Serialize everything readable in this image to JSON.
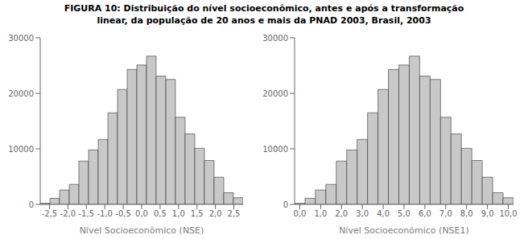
{
  "title": "FIGURA 10: Distribuição do nível socioeconômico, antes e após a transformação\nlinear, da população de 20 anos e mais da PNAD 2003, Brasil, 2003",
  "chart_data": [
    {
      "type": "histogram",
      "xlabel": "Nível Socioeconômico (NSE)",
      "bins": [
        -2.75,
        -2.488095238095238,
        -2.226190476190476,
        -1.964285714285714,
        -1.702380952380952,
        -1.44047619047619,
        -1.178571428571429,
        -0.916666666666667,
        -0.654761904761905,
        -0.392857142857143,
        -0.130952380952381,
        0.130952380952381,
        0.392857142857143,
        0.654761904761905,
        0.916666666666667,
        1.178571428571429,
        1.44047619047619,
        1.702380952380952,
        1.964285714285714,
        2.226190476190476,
        2.488095238095238,
        2.75
      ],
      "values": [
        200,
        1100,
        2600,
        3600,
        7800,
        9800,
        11700,
        16500,
        20700,
        24300,
        25100,
        26700,
        23100,
        22500,
        15700,
        12700,
        10100,
        7900,
        4900,
        2100,
        1200
      ],
      "color": "#c8c8c8",
      "xlim": [
        -2.75,
        2.75
      ],
      "xticks": [
        {
          "value": -2.5,
          "label": "-2,5"
        },
        {
          "value": -2.0,
          "label": "-2,0"
        },
        {
          "value": -1.5,
          "label": "-1,5"
        },
        {
          "value": -1.0,
          "label": "-1,0"
        },
        {
          "value": -0.5,
          "label": "-0,5"
        },
        {
          "value": 0.0,
          "label": "0,0"
        },
        {
          "value": 0.5,
          "label": "0,5"
        },
        {
          "value": 1.0,
          "label": "1,0"
        },
        {
          "value": 1.5,
          "label": "1,5"
        },
        {
          "value": 2.0,
          "label": "2,0"
        },
        {
          "value": 2.5,
          "label": "2,5"
        }
      ],
      "ylim": [
        0,
        30000
      ],
      "yticks": [
        0,
        10000,
        20000,
        30000
      ],
      "grid": false
    },
    {
      "type": "histogram",
      "xlabel": "Nível Socioeconômico (NSE1)",
      "bins": [
        -0.25,
        0.25,
        0.75,
        1.25,
        1.75,
        2.25,
        2.75,
        3.25,
        3.75,
        4.25,
        4.75,
        5.25,
        5.75,
        6.25,
        6.75,
        7.25,
        7.75,
        8.25,
        8.75,
        9.25,
        9.75,
        10.25
      ],
      "values": [
        200,
        1100,
        2600,
        3600,
        7800,
        9800,
        11700,
        16500,
        20700,
        24300,
        25100,
        26700,
        23100,
        22500,
        15700,
        12700,
        10100,
        7900,
        4900,
        2100,
        1200
      ],
      "color": "#c8c8c8",
      "xlim": [
        -0.25,
        10.25
      ],
      "xticks": [
        {
          "value": 0.0,
          "label": "0,0"
        },
        {
          "value": 1.0,
          "label": "1,0"
        },
        {
          "value": 2.0,
          "label": "2,0"
        },
        {
          "value": 3.0,
          "label": "3,0"
        },
        {
          "value": 4.0,
          "label": "4,0"
        },
        {
          "value": 5.0,
          "label": "5,0"
        },
        {
          "value": 6.0,
          "label": "6,0"
        },
        {
          "value": 7.0,
          "label": "7,0"
        },
        {
          "value": 8.0,
          "label": "8,0"
        },
        {
          "value": 9.0,
          "label": "9,0"
        },
        {
          "value": 10.0,
          "label": "10,0"
        }
      ],
      "ylim": [
        0,
        30000
      ],
      "yticks": [
        0,
        10000,
        20000,
        30000
      ],
      "grid": false
    }
  ]
}
